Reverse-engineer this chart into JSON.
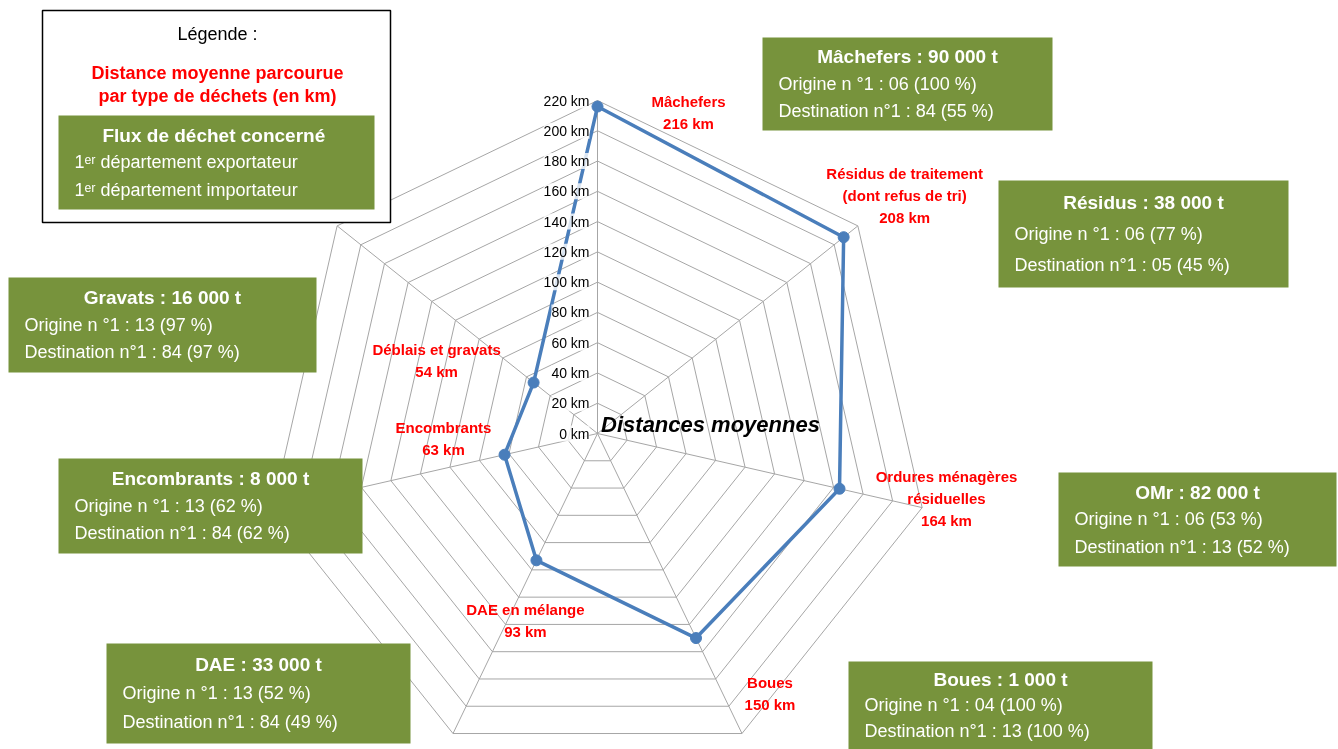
{
  "chart_data": {
    "type": "radar",
    "title": "Distances moyennes",
    "legend_title": "Distance moyenne parcourue\npar type de déchets (en km)",
    "categories": [
      "Mâchefers",
      "Résidus de traitement\n(dont refus de tri)",
      "Ordures ménagères\nrésiduelles",
      "Boues",
      "DAE en mélange",
      "Encombrants",
      "Déblais et gravats"
    ],
    "series": [
      {
        "color": "#4a7ebb",
        "values": [
          216,
          208,
          164,
          150,
          93,
          63,
          54
        ]
      }
    ],
    "value_labels": [
      "216 km",
      "208 km",
      "164 km",
      "150 km",
      "93 km",
      "63 km",
      "54 km"
    ],
    "ylim": [
      0,
      220
    ],
    "yticks": [
      {
        "value": 0,
        "label": "0 km"
      },
      {
        "value": 20,
        "label": "20 km"
      },
      {
        "value": 40,
        "label": "40 km"
      },
      {
        "value": 60,
        "label": "60 km"
      },
      {
        "value": 80,
        "label": "80 km"
      },
      {
        "value": 100,
        "label": "100 km"
      },
      {
        "value": 120,
        "label": "120 km"
      },
      {
        "value": 140,
        "label": "140 km"
      },
      {
        "value": 160,
        "label": "160 km"
      },
      {
        "value": 180,
        "label": "180 km"
      },
      {
        "value": 200,
        "label": "200 km"
      },
      {
        "value": 220,
        "label": "220 km"
      }
    ],
    "grid": true,
    "marker": "circle",
    "line_style": "solid",
    "annotations": [
      "Légende :",
      "Flux de déchet  concerné\n1ᵉʳ département  exportateur\n1ᵉʳ département  importateur",
      "Mâchefers : 90 000 t\nOrigine n °1 : 06 (100 %)\nDestination n°1 : 84 (55 %)",
      "Résidus : 38 000 t\nOrigine n °1 : 06 (77 %)\nDestination n°1 : 05 (45 %)",
      "OMr : 82 000 t\nOrigine n °1 : 06 (53 %)\nDestination n°1 : 13 (52 %)",
      "Boues : 1 000 t\nOrigine n °1 : 04 (100 %)\nDestination n°1 : 13 (100 %)",
      "DAE : 33 000 t\nOrigine n °1 : 13 (52 %)\nDestination n°1 : 84 (49 %)",
      "Encombrants : 8 000 t\nOrigine n °1 : 13 (62 %)\nDestination n°1 : 84 (62 %)",
      "Gravats : 16 000 t\nOrigine n °1 : 13 (97 %)\nDestination n°1 : 84 (97 %)"
    ]
  }
}
